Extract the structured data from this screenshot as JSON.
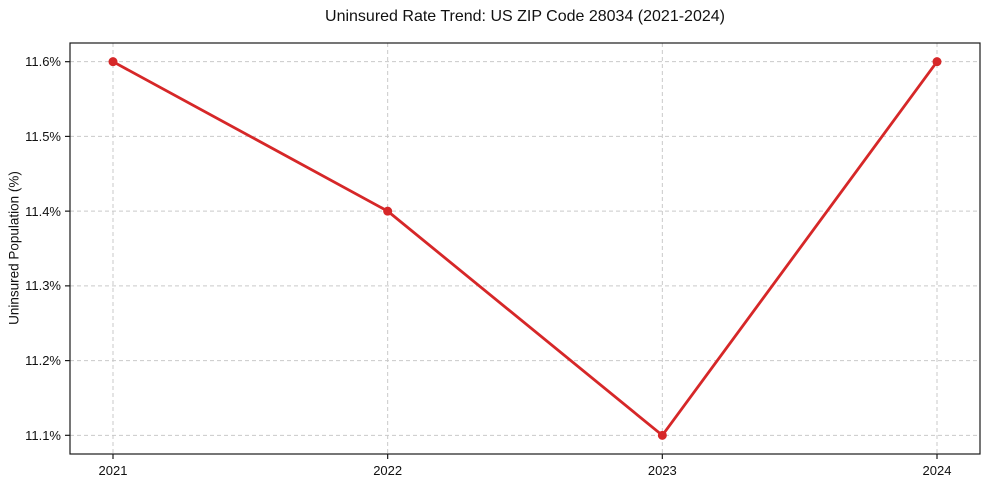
{
  "chart_data": {
    "type": "line",
    "title": "Uninsured Rate Trend: US ZIP Code 28034 (2021-2024)",
    "xlabel": "",
    "ylabel": "Uninsured Population (%)",
    "categories": [
      "2021",
      "2022",
      "2023",
      "2024"
    ],
    "x": [
      2021,
      2022,
      2023,
      2024
    ],
    "series": [
      {
        "name": "Uninsured rate",
        "values": [
          11.6,
          11.4,
          11.1,
          11.6
        ],
        "color": "#d62728",
        "marker": "circle"
      }
    ],
    "ylim": [
      11.075,
      11.625
    ],
    "yticks": [
      11.1,
      11.2,
      11.3,
      11.4,
      11.5,
      11.6
    ],
    "ytick_labels": [
      "11.1%",
      "11.2%",
      "11.3%",
      "11.4%",
      "11.5%",
      "11.6%"
    ],
    "grid": true,
    "grid_style": "dashed",
    "grid_color": "#c9c9c9",
    "axis_color": "#1a1a1a",
    "background_color": "#ffffff",
    "legend": "none"
  }
}
